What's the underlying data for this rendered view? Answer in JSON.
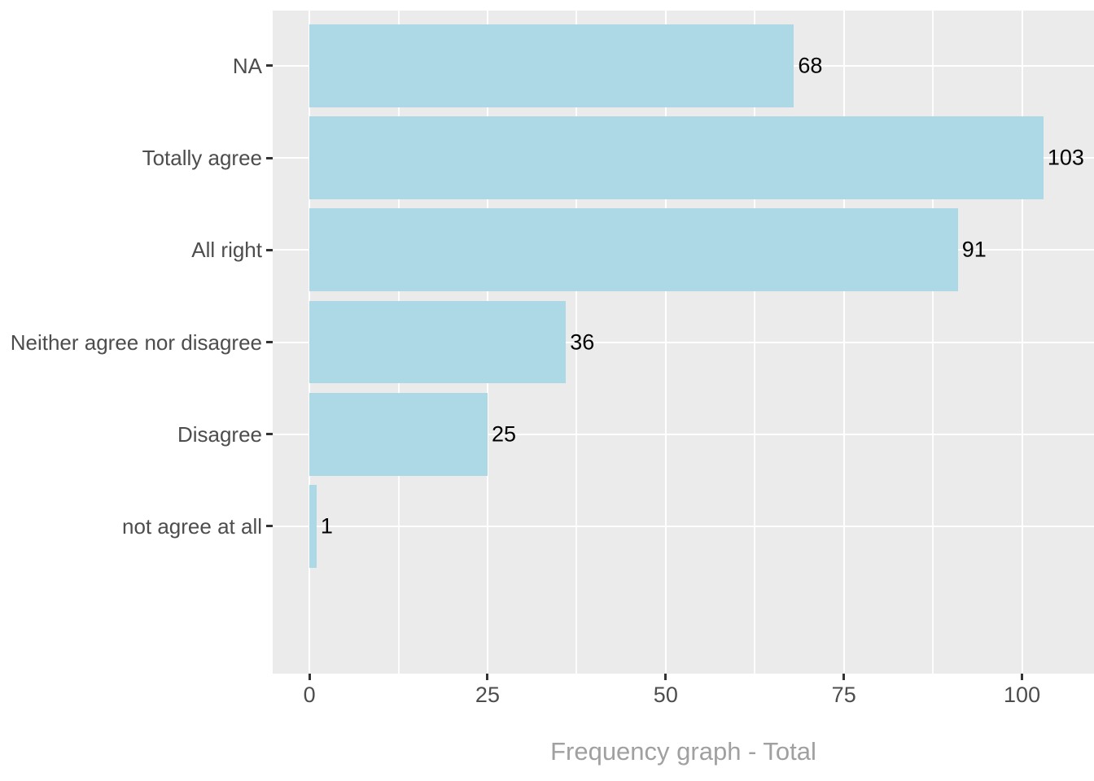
{
  "chart_data": {
    "type": "bar",
    "orientation": "horizontal",
    "title": "Frequency graph - Total",
    "categories": [
      "NA",
      "Totally agree",
      "All right",
      "Neither agree nor disagree",
      "Disagree",
      "not agree at all"
    ],
    "values": [
      68,
      103,
      91,
      36,
      25,
      1
    ],
    "bar_labels": [
      "68",
      "103",
      "91",
      "36",
      "25",
      "1"
    ],
    "xlabel": "Frequency graph - Total",
    "ylabel": "",
    "x_ticks": [
      0,
      25,
      50,
      75,
      100
    ],
    "x_tick_labels": [
      "0",
      "25",
      "50",
      "75",
      "100"
    ],
    "x_minor_ticks": [
      12.5,
      37.5,
      62.5,
      87.5
    ],
    "xlim": [
      -5.15,
      110.1
    ],
    "grid": "white major and minor verticals, white major horizontals",
    "legend": false,
    "colors": {
      "bar_fill": "#ADD8E6",
      "panel_background": "#EBEBEB",
      "gridline": "#FFFFFF",
      "axis_text": "#4D4D4D",
      "tick_mark": "#333333",
      "value_label": "#000000",
      "title_text": "#A0A0A0",
      "page_background": "#FFFFFF"
    }
  }
}
